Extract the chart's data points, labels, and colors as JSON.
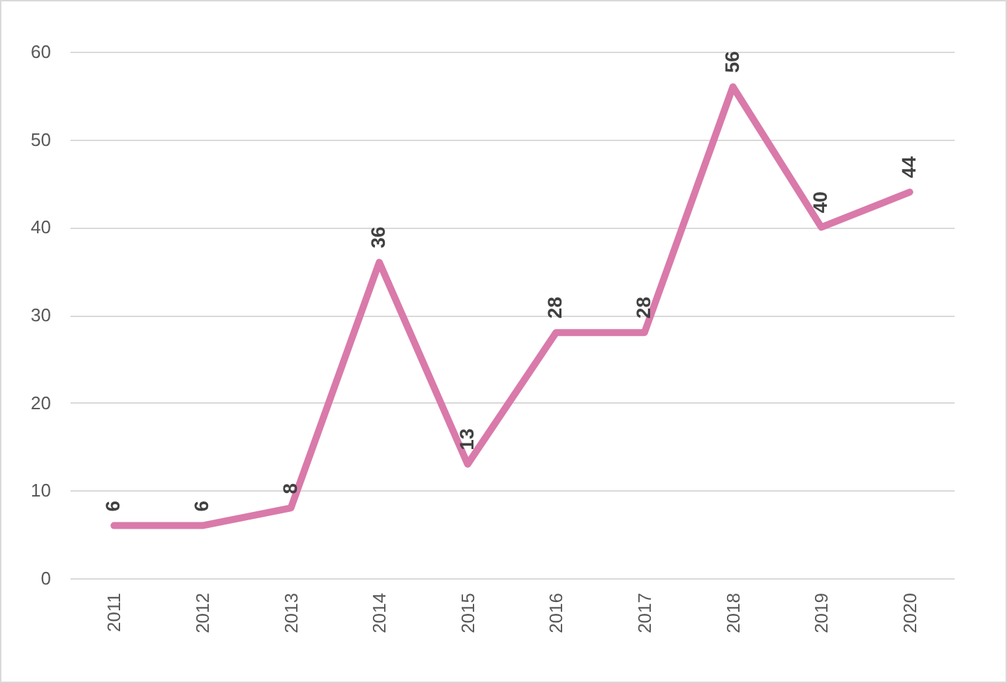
{
  "chart_data": {
    "type": "line",
    "categories": [
      "2011",
      "2012",
      "2013",
      "2014",
      "2015",
      "2016",
      "2017",
      "2018",
      "2019",
      "2020"
    ],
    "values": [
      6,
      6,
      8,
      36,
      13,
      28,
      28,
      56,
      40,
      44
    ],
    "color": "#d97aaa",
    "ylim": [
      0,
      60
    ],
    "yticks": [
      0,
      10,
      20,
      30,
      40,
      50,
      60
    ],
    "grid": "y",
    "data_labels": true
  }
}
